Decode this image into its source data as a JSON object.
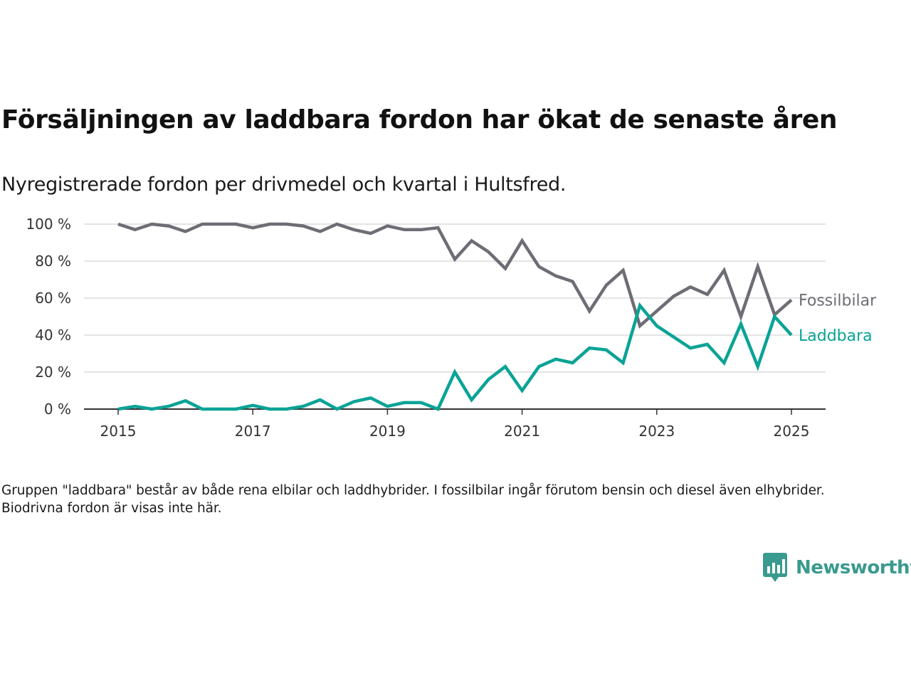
{
  "chart_data": {
    "type": "line",
    "title": "Försäljningen av laddbara fordon har ökat de senaste åren",
    "subtitle": "Nyregistrerade fordon per drivmedel och kvartal i Hultsfred.",
    "xlabel": "",
    "ylabel": "",
    "x_ticks": [
      2015,
      2017,
      2019,
      2021,
      2023,
      2025
    ],
    "y_ticks": [
      0,
      20,
      40,
      60,
      80,
      100
    ],
    "y_tick_labels": [
      "0 %",
      "20 %",
      "40 %",
      "60 %",
      "80 %",
      "100 %"
    ],
    "xlim": [
      2014.5,
      2026.0
    ],
    "ylim": [
      0,
      100
    ],
    "grid": "horizontal",
    "legend": "end-of-line labels",
    "x": [
      2015.0,
      2015.25,
      2015.5,
      2015.75,
      2016.0,
      2016.25,
      2016.5,
      2016.75,
      2017.0,
      2017.25,
      2017.5,
      2017.75,
      2018.0,
      2018.25,
      2018.5,
      2018.75,
      2019.0,
      2019.25,
      2019.5,
      2019.75,
      2020.0,
      2020.25,
      2020.5,
      2020.75,
      2021.0,
      2021.25,
      2021.5,
      2021.75,
      2022.0,
      2022.25,
      2022.5,
      2022.75,
      2023.0,
      2023.25,
      2023.5,
      2023.75,
      2024.0,
      2024.25,
      2024.5,
      2024.75,
      2025.0
    ],
    "series": [
      {
        "name": "Fossilbilar",
        "color": "#6e6d75",
        "values": [
          100,
          97,
          100,
          99,
          96,
          100,
          100,
          100,
          98,
          100,
          100,
          99,
          96,
          100,
          97,
          95,
          99,
          97,
          97,
          98,
          81,
          91,
          85,
          76,
          91,
          77,
          72,
          69,
          53,
          67,
          75,
          45,
          53,
          61,
          66,
          62,
          75,
          50,
          77,
          51,
          59
        ]
      },
      {
        "name": "Laddbara",
        "color": "#0aa396",
        "values": [
          0,
          1.5,
          0,
          1.5,
          4.5,
          0,
          0,
          0,
          2,
          0,
          0,
          1.5,
          5,
          0,
          4,
          6,
          1.5,
          3.5,
          3.5,
          0,
          20,
          5,
          16,
          23,
          10,
          23,
          27,
          25,
          33,
          32,
          25,
          56,
          45,
          39,
          33,
          35,
          25,
          46,
          23,
          50,
          40
        ]
      }
    ]
  },
  "footnote": "Gruppen \"laddbara\" består av både rena elbilar och laddhybrider. I fossilbilar ingår förutom bensin och diesel även elhybrider. Biodrivna fordon är visas inte här.",
  "brand": {
    "name": "Newsworthy",
    "color": "#3a9a8f",
    "icon": "bar-chart-speech-bubble-icon"
  }
}
